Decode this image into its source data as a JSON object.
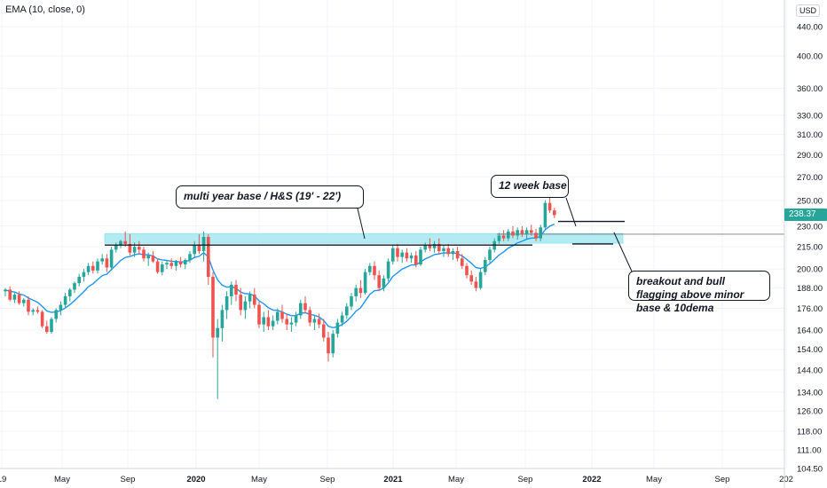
{
  "indicator_legend": "EMA (10, close, 0)",
  "currency_label": "USD",
  "last_price_label": "238.37",
  "colors": {
    "up": "#26a69a",
    "down": "#ef5350",
    "ema": "#2196f3",
    "zone_fill": "#b2ebf2",
    "grid": "#f0f3fa"
  },
  "annotations": {
    "base_note": "multi year base / H&S (19' - 22')",
    "twelve_week": "12 week base",
    "breakout": "breakout and bull flagging above minor base & 10dema"
  },
  "chart_data": {
    "type": "candlestick",
    "scale": "log",
    "y_range": [
      104.5,
      480
    ],
    "y_ticks": [
      "440.00",
      "400.00",
      "360.00",
      "330.00",
      "310.00",
      "290.00",
      "270.00",
      "250.00",
      "230.00",
      "215.00",
      "200.00",
      "188.00",
      "176.00",
      "164.00",
      "154.00",
      "144.00",
      "134.00",
      "126.00",
      "118.00",
      "111.00",
      "104.50"
    ],
    "x_ticks": [
      "19",
      "May",
      "Sep",
      "2020",
      "May",
      "Sep",
      "2021",
      "May",
      "Sep",
      "2022",
      "May",
      "Sep",
      "202"
    ],
    "last_price": 238.37,
    "ema_period": 10,
    "resistance_zone": [
      217.5,
      224.5
    ],
    "minor_base": [
      217,
      233.5
    ],
    "ohlc_weekly": [
      [
        186,
        188,
        183,
        187
      ],
      [
        187,
        189,
        180,
        181
      ],
      [
        181,
        185,
        179,
        184
      ],
      [
        184,
        186,
        178,
        179
      ],
      [
        179,
        182,
        177,
        181
      ],
      [
        181,
        183,
        172,
        174
      ],
      [
        174,
        176,
        172,
        175
      ],
      [
        175,
        177,
        173,
        174
      ],
      [
        174,
        175,
        165,
        166
      ],
      [
        166,
        169,
        162,
        163
      ],
      [
        163,
        171,
        162,
        170
      ],
      [
        170,
        176,
        168,
        175
      ],
      [
        175,
        180,
        172,
        178
      ],
      [
        178,
        185,
        176,
        183
      ],
      [
        183,
        188,
        180,
        187
      ],
      [
        187,
        192,
        185,
        191
      ],
      [
        191,
        197,
        189,
        195
      ],
      [
        195,
        200,
        192,
        198
      ],
      [
        198,
        204,
        196,
        202
      ],
      [
        202,
        205,
        197,
        199
      ],
      [
        199,
        207,
        197,
        205
      ],
      [
        205,
        210,
        203,
        207
      ],
      [
        207,
        210,
        198,
        201
      ],
      [
        201,
        215,
        199,
        213
      ],
      [
        213,
        218,
        211,
        216
      ],
      [
        216,
        220,
        214,
        219
      ],
      [
        219,
        226,
        215,
        217
      ],
      [
        217,
        224,
        209,
        211
      ],
      [
        211,
        218,
        208,
        215
      ],
      [
        215,
        219,
        210,
        213
      ],
      [
        213,
        215,
        205,
        207
      ],
      [
        207,
        211,
        202,
        209
      ],
      [
        209,
        212,
        204,
        205
      ],
      [
        205,
        207,
        197,
        198
      ],
      [
        198,
        205,
        196,
        203
      ],
      [
        203,
        206,
        200,
        204
      ],
      [
        204,
        207,
        200,
        202
      ],
      [
        202,
        206,
        199,
        205
      ],
      [
        205,
        208,
        201,
        203
      ],
      [
        203,
        207,
        200,
        206
      ],
      [
        206,
        212,
        204,
        210
      ],
      [
        210,
        219,
        208,
        216
      ],
      [
        216,
        224,
        210,
        212
      ],
      [
        212,
        226,
        205,
        222
      ],
      [
        222,
        224,
        190,
        195
      ],
      [
        195,
        198,
        150,
        160
      ],
      [
        160,
        170,
        131,
        165
      ],
      [
        165,
        178,
        158,
        175
      ],
      [
        175,
        186,
        170,
        183
      ],
      [
        183,
        192,
        178,
        190
      ],
      [
        190,
        193,
        180,
        184
      ],
      [
        184,
        188,
        172,
        175
      ],
      [
        175,
        183,
        170,
        180
      ],
      [
        180,
        186,
        176,
        184
      ],
      [
        184,
        188,
        176,
        178
      ],
      [
        178,
        180,
        165,
        167
      ],
      [
        167,
        174,
        163,
        171
      ],
      [
        171,
        175,
        164,
        166
      ],
      [
        166,
        172,
        164,
        169
      ],
      [
        169,
        176,
        167,
        174
      ],
      [
        174,
        178,
        168,
        170
      ],
      [
        170,
        173,
        164,
        167
      ],
      [
        167,
        171,
        163,
        168
      ],
      [
        168,
        174,
        166,
        172
      ],
      [
        172,
        181,
        170,
        179
      ],
      [
        179,
        183,
        173,
        175
      ],
      [
        175,
        177,
        166,
        168
      ],
      [
        168,
        172,
        164,
        170
      ],
      [
        170,
        173,
        165,
        167
      ],
      [
        167,
        170,
        158,
        160
      ],
      [
        160,
        163,
        148,
        152
      ],
      [
        152,
        164,
        150,
        162
      ],
      [
        162,
        170,
        160,
        168
      ],
      [
        168,
        174,
        166,
        172
      ],
      [
        172,
        179,
        170,
        177
      ],
      [
        177,
        185,
        175,
        183
      ],
      [
        183,
        190,
        180,
        188
      ],
      [
        188,
        193,
        182,
        185
      ],
      [
        185,
        200,
        184,
        198
      ],
      [
        198,
        204,
        196,
        202
      ],
      [
        202,
        205,
        193,
        196
      ],
      [
        196,
        199,
        186,
        188
      ],
      [
        188,
        196,
        186,
        194
      ],
      [
        194,
        207,
        192,
        205
      ],
      [
        205,
        216,
        203,
        214
      ],
      [
        214,
        217,
        205,
        208
      ],
      [
        208,
        213,
        204,
        211
      ],
      [
        211,
        214,
        205,
        207
      ],
      [
        207,
        211,
        204,
        209
      ],
      [
        209,
        212,
        201,
        203
      ],
      [
        203,
        215,
        202,
        213
      ],
      [
        213,
        218,
        211,
        216
      ],
      [
        216,
        221,
        212,
        214
      ],
      [
        214,
        219,
        211,
        217
      ],
      [
        217,
        221,
        210,
        212
      ],
      [
        212,
        216,
        208,
        214
      ],
      [
        214,
        217,
        208,
        210
      ],
      [
        210,
        214,
        206,
        212
      ],
      [
        212,
        215,
        205,
        207
      ],
      [
        207,
        210,
        200,
        202
      ],
      [
        202,
        204,
        194,
        196
      ],
      [
        196,
        199,
        190,
        192
      ],
      [
        192,
        195,
        186,
        188
      ],
      [
        188,
        200,
        187,
        198
      ],
      [
        198,
        208,
        196,
        206
      ],
      [
        206,
        215,
        204,
        213
      ],
      [
        213,
        221,
        211,
        219
      ],
      [
        219,
        225,
        217,
        223
      ],
      [
        223,
        227,
        219,
        221
      ],
      [
        221,
        228,
        219,
        226
      ],
      [
        226,
        230,
        221,
        223
      ],
      [
        223,
        229,
        220,
        227
      ],
      [
        227,
        230,
        222,
        224
      ],
      [
        224,
        229,
        220,
        227
      ],
      [
        227,
        231,
        223,
        225
      ],
      [
        225,
        228,
        219,
        221
      ],
      [
        221,
        231,
        219,
        229
      ],
      [
        229,
        250,
        228,
        248
      ],
      [
        248,
        255,
        240,
        242
      ],
      [
        242,
        244,
        236,
        238.37
      ]
    ]
  }
}
